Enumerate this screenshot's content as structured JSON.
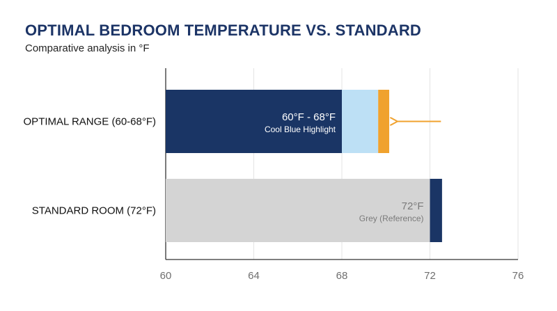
{
  "chart_data": {
    "type": "bar",
    "orientation": "horizontal",
    "title": "OPTIMAL BEDROOM TEMPERATURE VS. STANDARD",
    "subtitle": "Comparative analysis in °F",
    "xlabel": "",
    "ylabel": "",
    "xlim": [
      60,
      76
    ],
    "xticks": [
      60,
      64,
      68,
      72,
      76
    ],
    "grid": "vertical",
    "categories": [
      "OPTIMAL RANGE (60-68°F)",
      "STANDARD ROOM (72°F)"
    ],
    "bars": [
      {
        "category": "OPTIMAL RANGE (60-68°F)",
        "segments": [
          {
            "start": 60,
            "end": 68,
            "color": "#1a3565"
          },
          {
            "start": 68,
            "end": 69.65,
            "color": "#bde0f5"
          },
          {
            "start": 69.65,
            "end": 70.15,
            "color": "#f0a22e"
          }
        ],
        "label": "60°F - 68°F",
        "sublabel": "Cool Blue Highlight",
        "arrow": {
          "from": 72.5,
          "to": 70.4,
          "color": "#f0a22e"
        }
      },
      {
        "category": "STANDARD ROOM (72°F)",
        "segments": [
          {
            "start": 60,
            "end": 72,
            "color": "#d4d4d4"
          },
          {
            "start": 72,
            "end": 72.55,
            "color": "#1a3565"
          }
        ],
        "label": "72°F",
        "sublabel": "Grey (Reference)"
      }
    ]
  }
}
